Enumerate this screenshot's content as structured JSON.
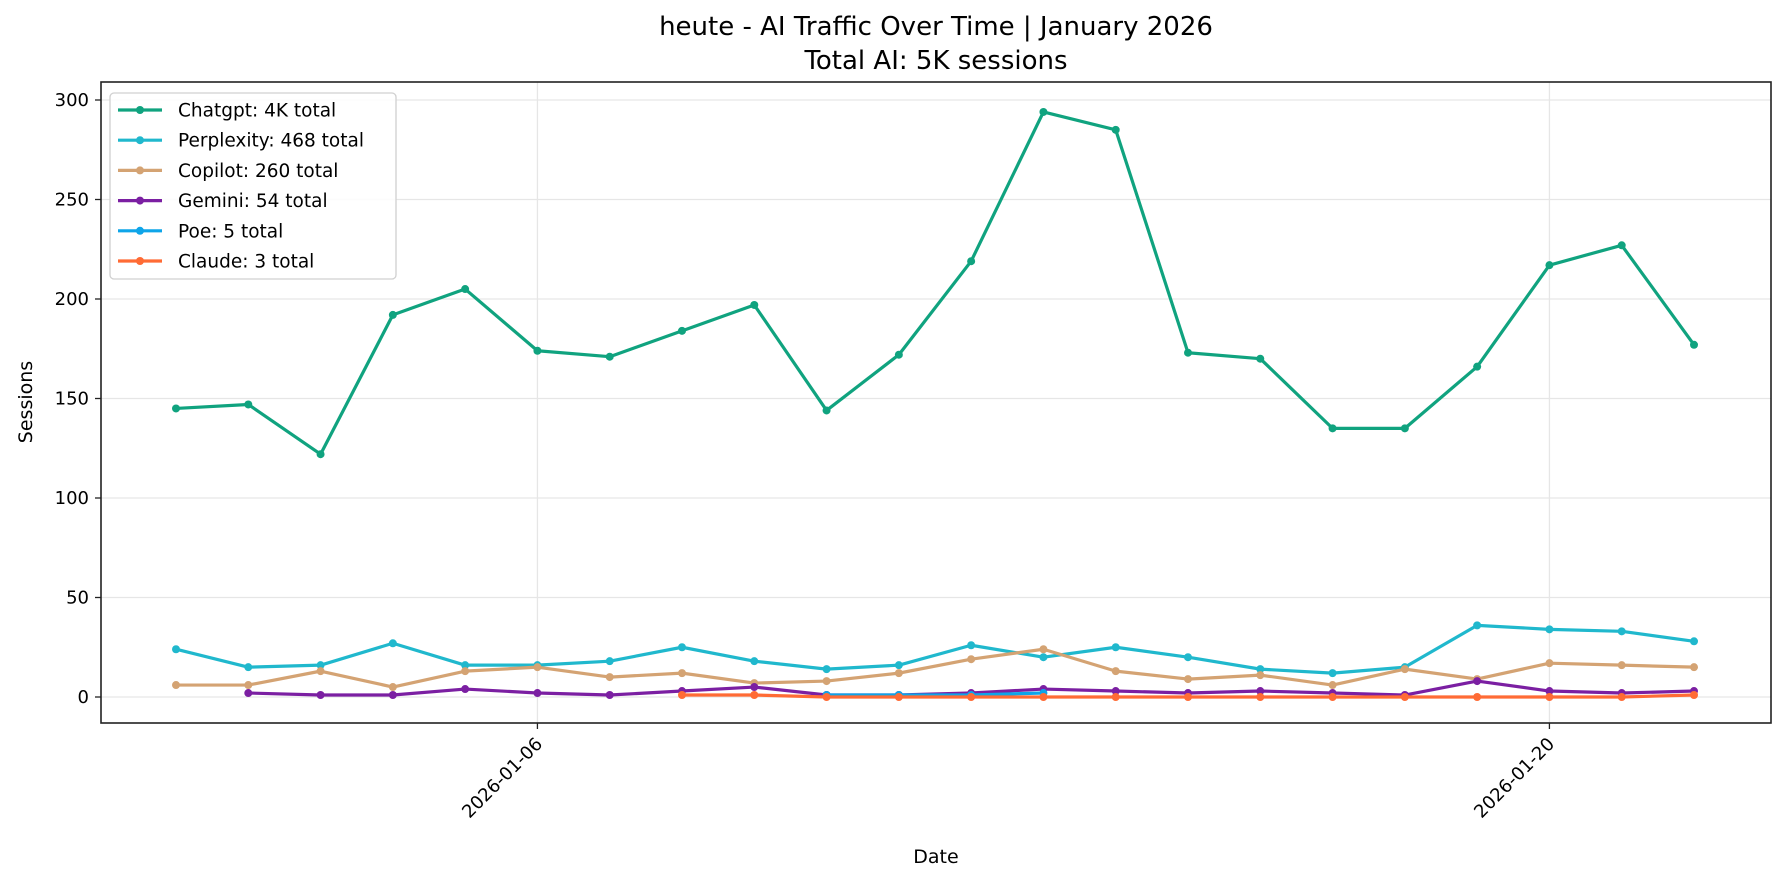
{
  "chart_data": {
    "type": "line",
    "title": "heute - AI Traffic Over Time | January 2026",
    "subtitle": "Total AI: 5K sessions",
    "xlabel": "Date",
    "ylabel": "Sessions",
    "ylim": [
      -13,
      309
    ],
    "yticks": [
      0,
      50,
      100,
      150,
      200,
      250,
      300
    ],
    "xticks": [
      "2026-01-06",
      "2026-01-20"
    ],
    "grid": true,
    "legend_position": "upper left",
    "x": [
      "2026-01-01",
      "2026-01-02",
      "2026-01-03",
      "2026-01-04",
      "2026-01-05",
      "2026-01-06",
      "2026-01-07",
      "2026-01-08",
      "2026-01-09",
      "2026-01-10",
      "2026-01-11",
      "2026-01-12",
      "2026-01-13",
      "2026-01-14",
      "2026-01-15",
      "2026-01-16",
      "2026-01-17",
      "2026-01-18",
      "2026-01-19",
      "2026-01-20",
      "2026-01-21",
      "2026-01-22"
    ],
    "series": [
      {
        "name": "Chatgpt",
        "legend": "Chatgpt: 4K total",
        "color": "#10a37f",
        "values": [
          145,
          147,
          122,
          192,
          205,
          174,
          171,
          184,
          197,
          144,
          172,
          219,
          294,
          285,
          173,
          170,
          135,
          135,
          166,
          217,
          227,
          177
        ]
      },
      {
        "name": "Perplexity",
        "legend": "Perplexity: 468 total",
        "color": "#20b8cd",
        "values": [
          24,
          15,
          16,
          27,
          16,
          16,
          18,
          25,
          18,
          14,
          16,
          26,
          20,
          25,
          20,
          14,
          12,
          15,
          36,
          34,
          33,
          28
        ]
      },
      {
        "name": "Copilot",
        "legend": "Copilot: 260 total",
        "color": "#d4a373",
        "values": [
          6,
          6,
          13,
          5,
          13,
          15,
          10,
          12,
          7,
          8,
          12,
          19,
          24,
          13,
          9,
          11,
          6,
          14,
          9,
          17,
          16,
          15
        ]
      },
      {
        "name": "Gemini",
        "legend": "Gemini: 54 total",
        "color": "#7b1fa2",
        "values": [
          null,
          2,
          1,
          1,
          4,
          2,
          1,
          3,
          5,
          1,
          1,
          2,
          4,
          3,
          2,
          3,
          2,
          1,
          8,
          3,
          2,
          3
        ]
      },
      {
        "name": "Poe",
        "legend": "Poe: 5 total",
        "color": "#0ea5e9",
        "values": [
          null,
          null,
          null,
          null,
          null,
          null,
          null,
          null,
          null,
          1,
          1,
          1,
          2,
          null,
          null,
          null,
          null,
          null,
          null,
          null,
          null,
          null
        ]
      },
      {
        "name": "Claude",
        "legend": "Claude: 3 total",
        "color": "#ff6b35",
        "values": [
          null,
          null,
          null,
          null,
          null,
          null,
          null,
          1,
          1,
          0,
          0,
          0,
          0,
          0,
          0,
          0,
          0,
          0,
          0,
          0,
          0,
          1
        ]
      }
    ]
  }
}
